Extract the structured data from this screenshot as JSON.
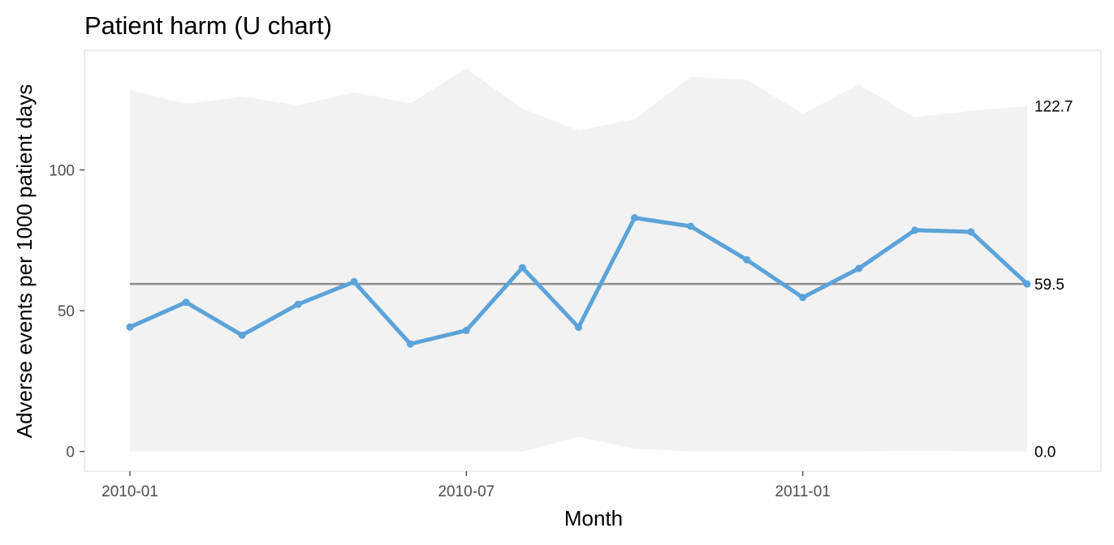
{
  "chart_data": {
    "type": "line",
    "title": "Patient harm (U chart)",
    "xlabel": "Month",
    "ylabel": "Adverse events per 1000 patient days",
    "x_tick_labels": [
      "2010-01",
      "2010-07",
      "2011-01"
    ],
    "y_ticks": [
      0,
      50,
      100
    ],
    "ylim": [
      -7,
      142.5
    ],
    "grid": false,
    "months": [
      "2010-01",
      "2010-02",
      "2010-03",
      "2010-04",
      "2010-05",
      "2010-06",
      "2010-07",
      "2010-08",
      "2010-09",
      "2010-10",
      "2010-11",
      "2010-12",
      "2011-01",
      "2011-02",
      "2011-03",
      "2011-04",
      "2011-05"
    ],
    "series": [
      {
        "values": [
          44.2,
          53.0,
          41.3,
          52.3,
          60.3,
          38.2,
          43.0,
          65.3,
          44.1,
          83.0,
          80.0,
          68.1,
          54.7,
          65.0,
          78.6,
          78.0,
          59.5
        ]
      }
    ],
    "center_line": 59.5,
    "ucl": [
      128.4,
      123.5,
      126.0,
      123.0,
      127.5,
      123.7,
      136.0,
      121.8,
      114.0,
      118.0,
      133.0,
      132.0,
      120.0,
      130.3,
      118.7,
      121.0,
      122.7
    ],
    "lcl": [
      0.0,
      0.0,
      0.0,
      0.0,
      0.0,
      0.0,
      0.0,
      0.0,
      5.2,
      1.0,
      0.0,
      0.0,
      0.0,
      0.0,
      0.3,
      0.0,
      0.0
    ],
    "end_labels": {
      "ucl": "122.7",
      "center": "59.5",
      "lcl": "0.0"
    },
    "colors": {
      "line": "#5ba3d9",
      "center_line": "#8c8c8c",
      "limits_band": "#f2f2f2",
      "panel_border": "#e6e6e6"
    }
  }
}
